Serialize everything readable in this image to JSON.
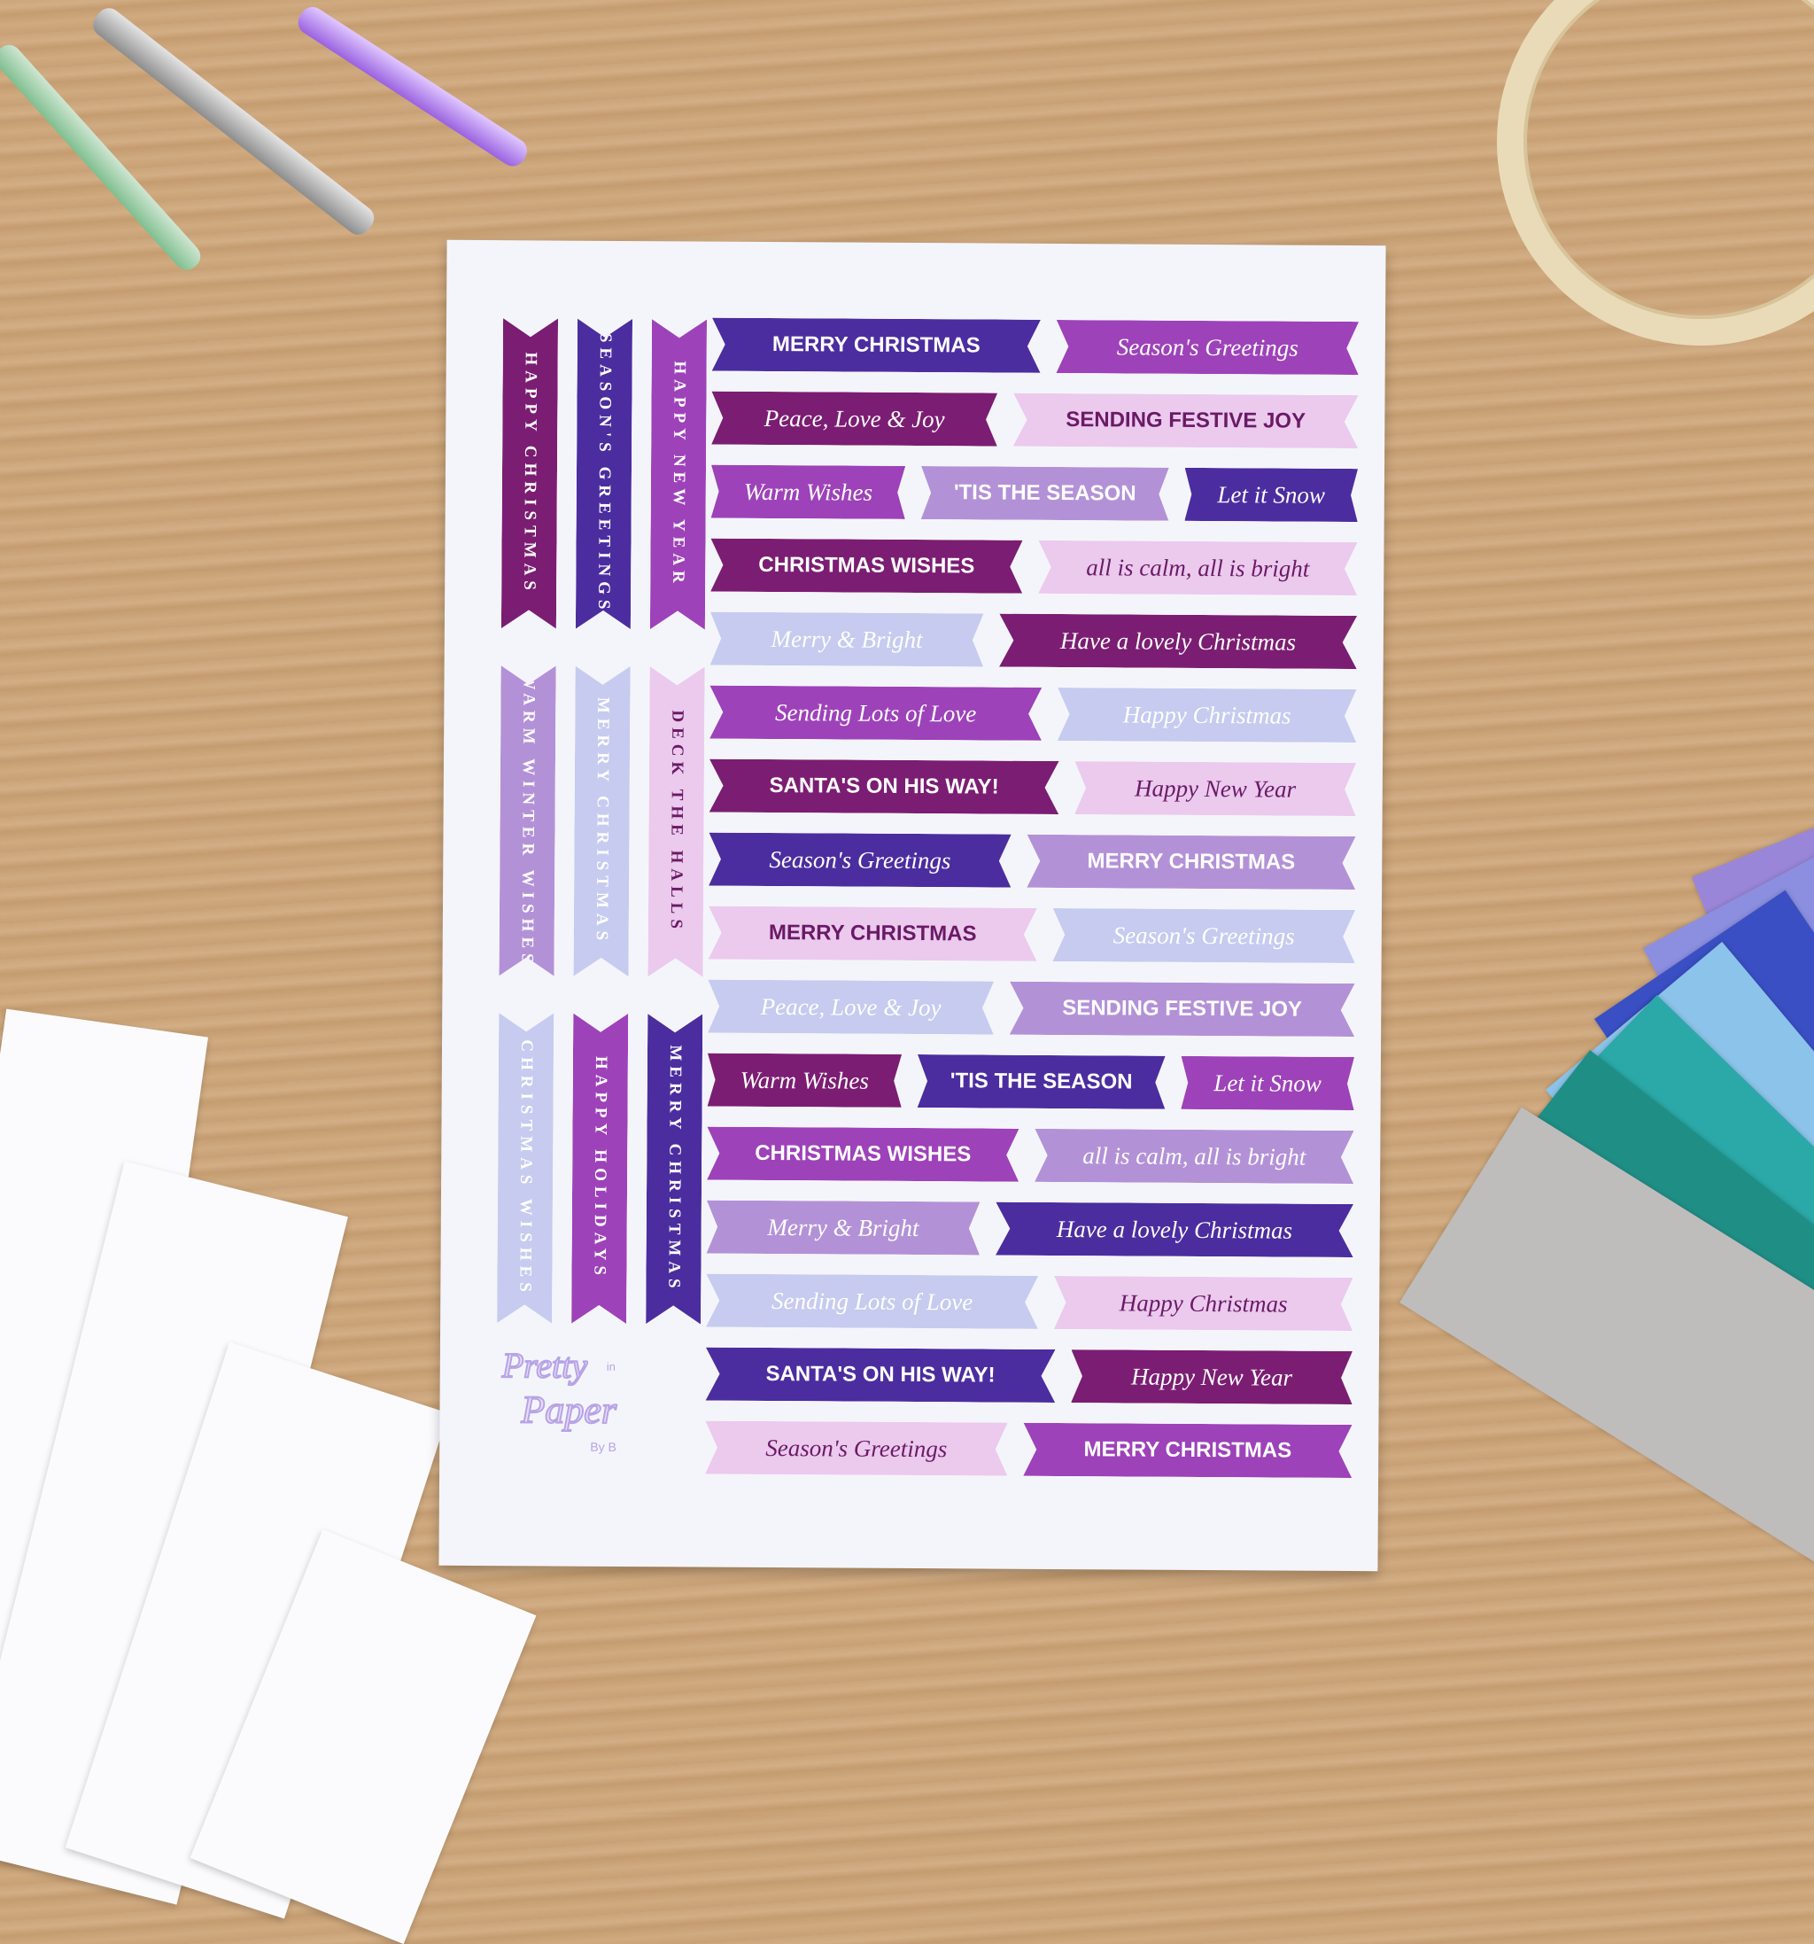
{
  "colors": {
    "indigo": "#4b2d9f",
    "plum": "#7b1d72",
    "purple": "#9d42b9",
    "lilac": "#b391d7",
    "periwinkle": "#c6cbef",
    "pink": "#ebcaed",
    "dark_text": "#6a1a66",
    "light_text": "#ffffff"
  },
  "vertical_banners": [
    [
      {
        "text": "HAPPY CHRISTMAS",
        "color": "plum"
      },
      {
        "text": "SEASON'S GREETINGS",
        "color": "indigo"
      },
      {
        "text": "HAPPY NEW YEAR",
        "color": "purple"
      }
    ],
    [
      {
        "text": "WARM WINTER WISHES",
        "color": "lilac"
      },
      {
        "text": "MERRY CHRISTMAS",
        "color": "periwinkle"
      },
      {
        "text": "DECK THE HALLS",
        "color": "pink"
      }
    ],
    [
      {
        "text": "CHRISTMAS WISHES",
        "color": "periwinkle"
      },
      {
        "text": "HAPPY HOLIDAYS",
        "color": "purple"
      },
      {
        "text": "MERRY CHRISTMAS",
        "color": "indigo"
      }
    ]
  ],
  "rows": [
    [
      {
        "text": "MERRY CHRISTMAS",
        "style": "caps",
        "color": "indigo"
      },
      {
        "text": "Season's Greetings",
        "style": "script",
        "color": "purple"
      }
    ],
    [
      {
        "text": "Peace, Love & Joy",
        "style": "script",
        "color": "plum"
      },
      {
        "text": "SENDING FESTIVE JOY",
        "style": "caps",
        "color": "pink"
      }
    ],
    [
      {
        "text": "Warm Wishes",
        "style": "script",
        "color": "purple"
      },
      {
        "text": "'TIS THE SEASON",
        "style": "caps",
        "color": "lilac"
      },
      {
        "text": "Let it Snow",
        "style": "script",
        "color": "indigo"
      }
    ],
    [
      {
        "text": "CHRISTMAS WISHES",
        "style": "caps",
        "color": "plum"
      },
      {
        "text": "all is calm, all is bright",
        "style": "script",
        "color": "pink"
      }
    ],
    [
      {
        "text": "Merry & Bright",
        "style": "script",
        "color": "periwinkle"
      },
      {
        "text": "Have a lovely Christmas",
        "style": "script",
        "color": "plum"
      }
    ],
    [
      {
        "text": "Sending Lots of Love",
        "style": "script",
        "color": "purple"
      },
      {
        "text": "Happy Christmas",
        "style": "script",
        "color": "periwinkle"
      }
    ],
    [
      {
        "text": "SANTA'S ON HIS WAY!",
        "style": "caps",
        "color": "plum"
      },
      {
        "text": "Happy New Year",
        "style": "script",
        "color": "pink"
      }
    ],
    [
      {
        "text": "Season's Greetings",
        "style": "script",
        "color": "indigo"
      },
      {
        "text": "MERRY CHRISTMAS",
        "style": "caps",
        "color": "lilac"
      }
    ],
    [
      {
        "text": "MERRY CHRISTMAS",
        "style": "caps",
        "color": "pink"
      },
      {
        "text": "Season's Greetings",
        "style": "script",
        "color": "periwinkle"
      }
    ],
    [
      {
        "text": "Peace, Love & Joy",
        "style": "script",
        "color": "periwinkle"
      },
      {
        "text": "SENDING FESTIVE JOY",
        "style": "caps",
        "color": "lilac"
      }
    ],
    [
      {
        "text": "Warm Wishes",
        "style": "script",
        "color": "plum"
      },
      {
        "text": "'TIS THE SEASON",
        "style": "caps",
        "color": "indigo"
      },
      {
        "text": "Let it Snow",
        "style": "script",
        "color": "purple"
      }
    ],
    [
      {
        "text": "CHRISTMAS WISHES",
        "style": "caps",
        "color": "purple"
      },
      {
        "text": "all is calm, all is bright",
        "style": "script",
        "color": "lilac"
      }
    ],
    [
      {
        "text": "Merry & Bright",
        "style": "script",
        "color": "lilac"
      },
      {
        "text": "Have a lovely Christmas",
        "style": "script",
        "color": "indigo"
      }
    ],
    [
      {
        "text": "Sending Lots of Love",
        "style": "script",
        "color": "periwinkle"
      },
      {
        "text": "Happy Christmas",
        "style": "script",
        "color": "pink"
      }
    ],
    [
      {
        "text": "SANTA'S ON HIS WAY!",
        "style": "caps",
        "color": "indigo"
      },
      {
        "text": "Happy New Year",
        "style": "script",
        "color": "plum"
      }
    ],
    [
      {
        "text": "Season's Greetings",
        "style": "script",
        "color": "pink"
      },
      {
        "text": "MERRY CHRISTMAS",
        "style": "caps",
        "color": "purple"
      }
    ]
  ],
  "logo": {
    "line1": "Pretty",
    "line2": "Paper",
    "small": "in",
    "by": "By B"
  },
  "paper_fan_colors": [
    "#9a86d8",
    "#8c8fe0",
    "#3a4fc4",
    "#8cc3ea",
    "#2aa9a8",
    "#1f8f86",
    "#bfbcbc"
  ]
}
